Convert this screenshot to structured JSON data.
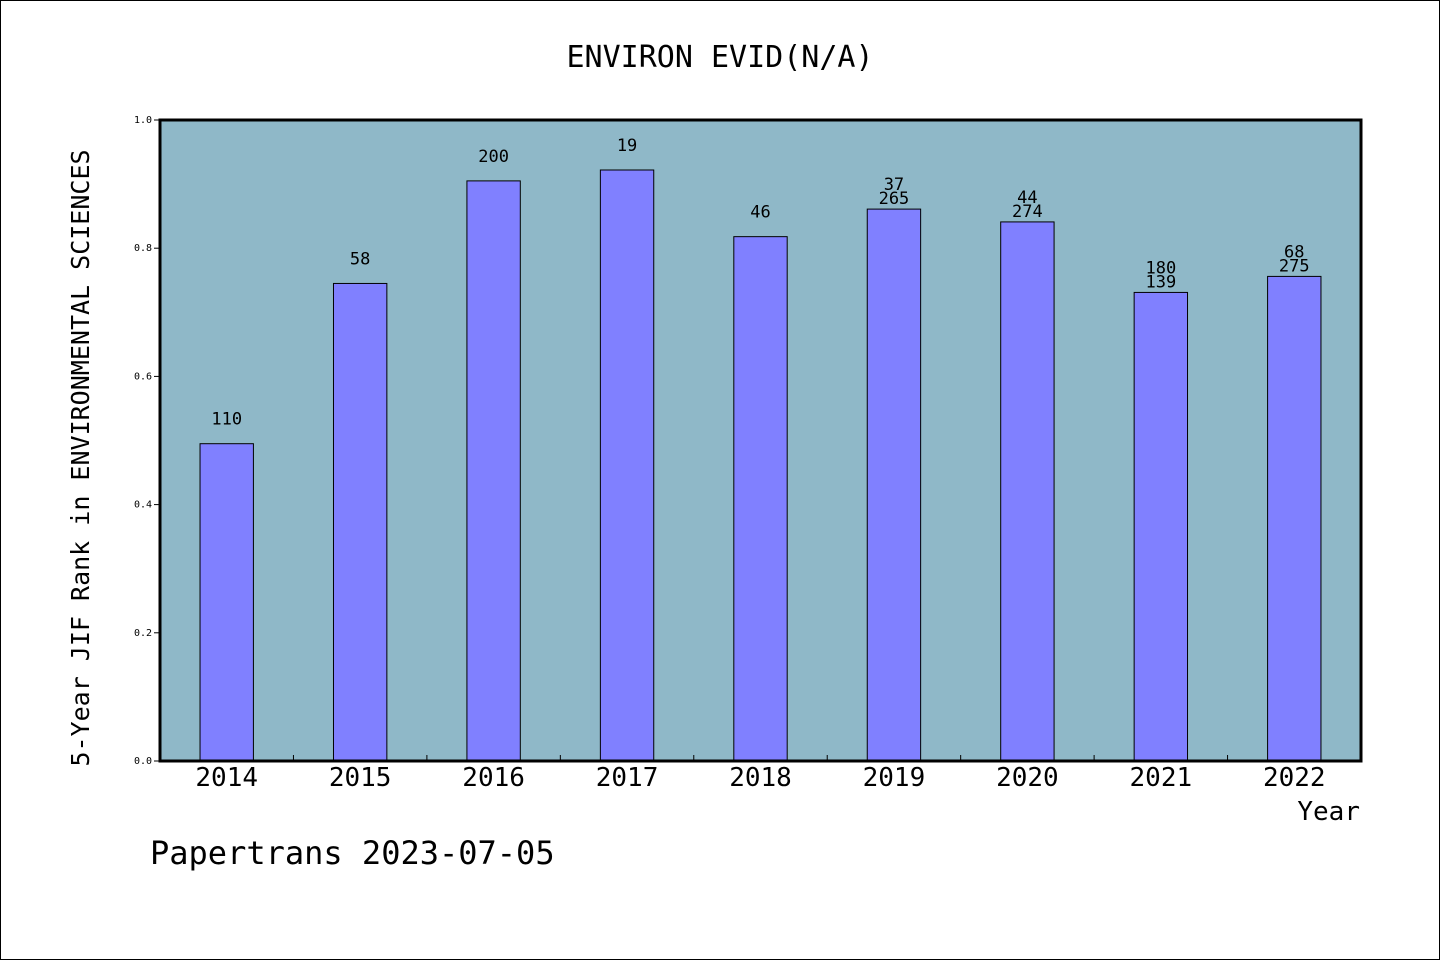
{
  "chart_data": {
    "type": "bar",
    "title": "ENVIRON EVID(N/A)",
    "xlabel": "Year",
    "ylabel": "5-Year JIF Rank in ENVIRONMENTAL SCIENCES",
    "categories": [
      "2014",
      "2015",
      "2016",
      "2017",
      "2018",
      "2019",
      "2020",
      "2021",
      "2022"
    ],
    "values": [
      0.495,
      0.745,
      0.905,
      0.922,
      0.818,
      0.861,
      0.841,
      0.731,
      0.756
    ],
    "labels": [
      [
        "110"
      ],
      [
        "58"
      ],
      [
        "200"
      ],
      [
        "19"
      ],
      [
        "46"
      ],
      [
        "37",
        "265"
      ],
      [
        "44",
        "274"
      ],
      [
        "180",
        "139"
      ],
      [
        "68",
        "275"
      ]
    ],
    "ylim": [
      0,
      1.0
    ],
    "yticks": [
      "0.0",
      "0.2",
      "0.4",
      "0.6",
      "0.8",
      "1.0"
    ],
    "grid": false,
    "colors": {
      "plot_background": "#8fb8c8",
      "bar_fill": "#8080ff",
      "bar_stroke": "#000000"
    }
  },
  "footer": {
    "credit": "Papertrans 2023-07-05"
  }
}
